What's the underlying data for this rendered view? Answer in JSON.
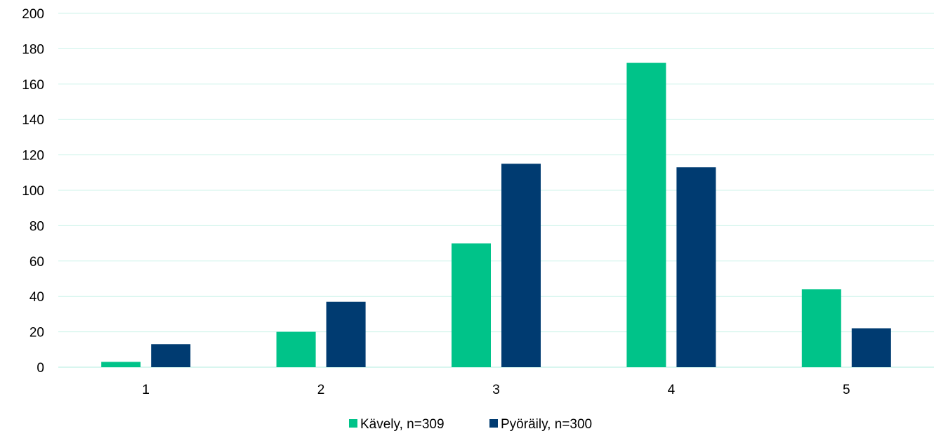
{
  "chart_data": {
    "type": "bar",
    "title": "",
    "xlabel": "",
    "ylabel": "",
    "categories": [
      "1",
      "2",
      "3",
      "4",
      "5"
    ],
    "series": [
      {
        "name": "Kävely, n=309",
        "color": "#00c389",
        "values": [
          3,
          20,
          70,
          172,
          44
        ]
      },
      {
        "name": "Pyöräily, n=300",
        "color": "#003b71",
        "values": [
          13,
          37,
          115,
          113,
          22
        ]
      }
    ],
    "ylim": [
      0,
      200
    ],
    "yticks": [
      0,
      20,
      40,
      60,
      80,
      100,
      120,
      140,
      160,
      180,
      200
    ],
    "grid": true,
    "grid_color": "#ccf3ea",
    "legend_position": "bottom"
  }
}
